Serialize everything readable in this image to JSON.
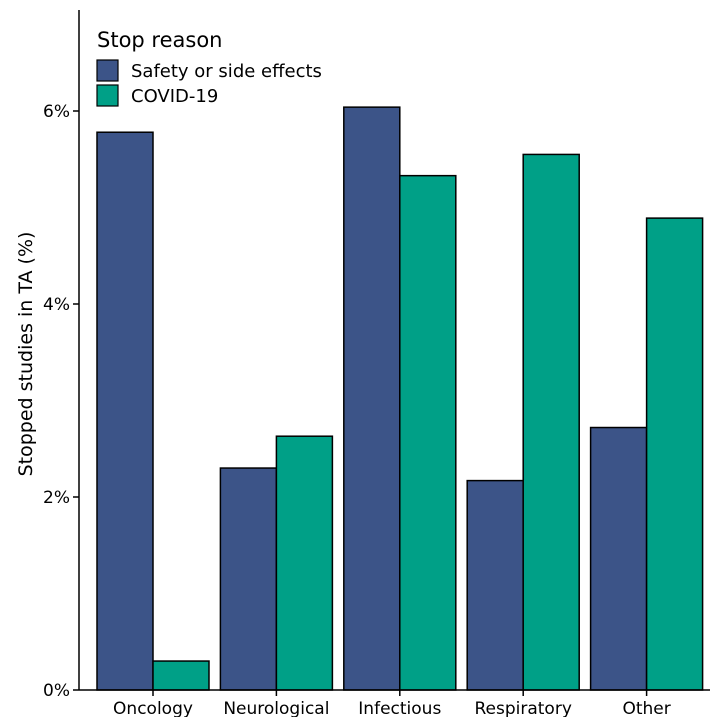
{
  "chart_data": {
    "type": "bar",
    "categories": [
      "Oncology",
      "Neurological",
      "Infectious",
      "Respiratory",
      "Other"
    ],
    "series": [
      {
        "name": "Safety or side effects",
        "color": "#3c5488",
        "values": [
          5.78,
          2.3,
          6.04,
          2.17,
          2.72
        ]
      },
      {
        "name": "COVID-19",
        "color": "#00a087",
        "values": [
          0.3,
          2.63,
          5.33,
          5.55,
          4.89
        ]
      }
    ],
    "ylabel": "Stopped studies in TA (%)",
    "ylim": [
      0,
      7
    ],
    "yticks": [
      0,
      2,
      4,
      6
    ],
    "ytick_labels": [
      "0%",
      "2%",
      "4%",
      "6%"
    ],
    "legend": {
      "title": "Stop reason",
      "position": "top-left"
    },
    "grid": false
  }
}
